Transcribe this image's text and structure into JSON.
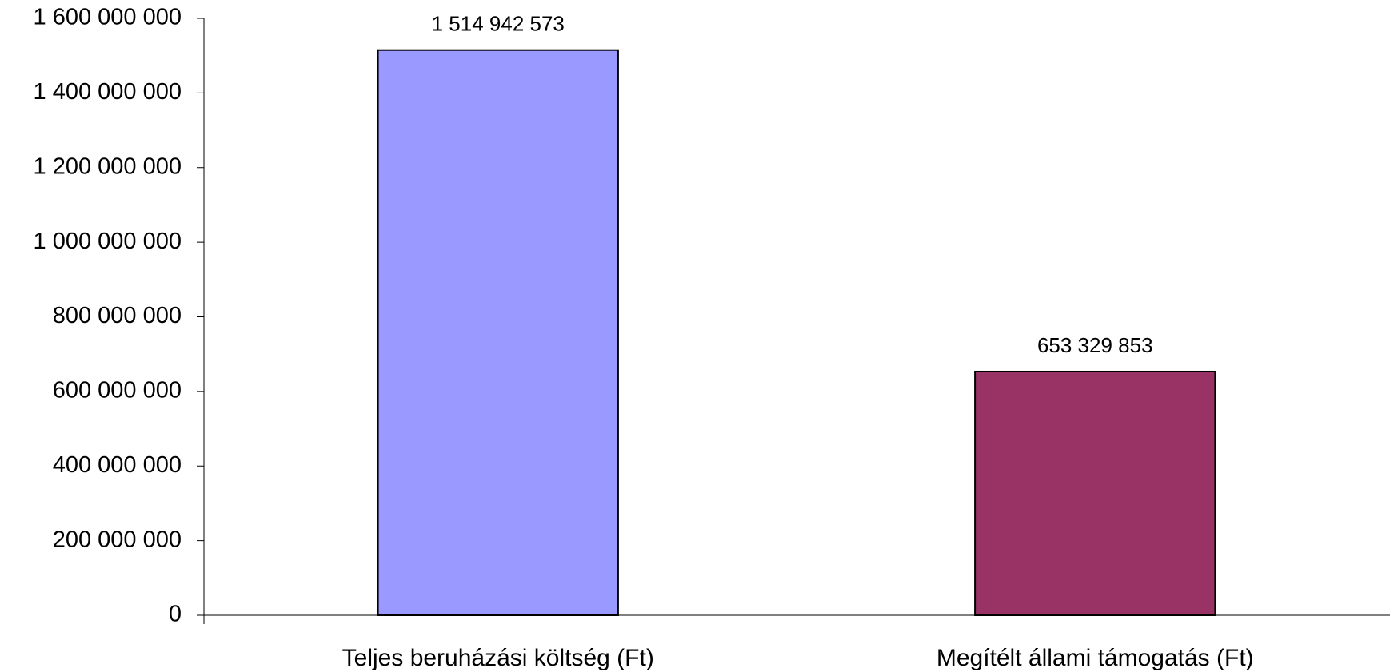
{
  "chart_data": {
    "type": "bar",
    "categories": [
      "Teljes beruházási költség (Ft)",
      "Megítélt  állami támogatás (Ft)"
    ],
    "values": [
      1514942573,
      653329853
    ],
    "data_labels": [
      "1 514 942 573",
      "653 329 853"
    ],
    "bar_colors": [
      "#9999ff",
      "#993366"
    ],
    "title": "",
    "xlabel": "",
    "ylabel": "",
    "ylim": [
      0,
      1600000000
    ],
    "y_ticks": [
      0,
      200000000,
      400000000,
      600000000,
      800000000,
      1000000000,
      1200000000,
      1400000000,
      1600000000
    ],
    "y_tick_labels": [
      "0",
      "200 000 000",
      "400 000 000",
      "600 000 000",
      "800 000 000",
      "1 000 000 000",
      "1 200 000 000",
      "1 400 000 000",
      "1 600 000 000"
    ],
    "grid": false,
    "legend": "none"
  }
}
